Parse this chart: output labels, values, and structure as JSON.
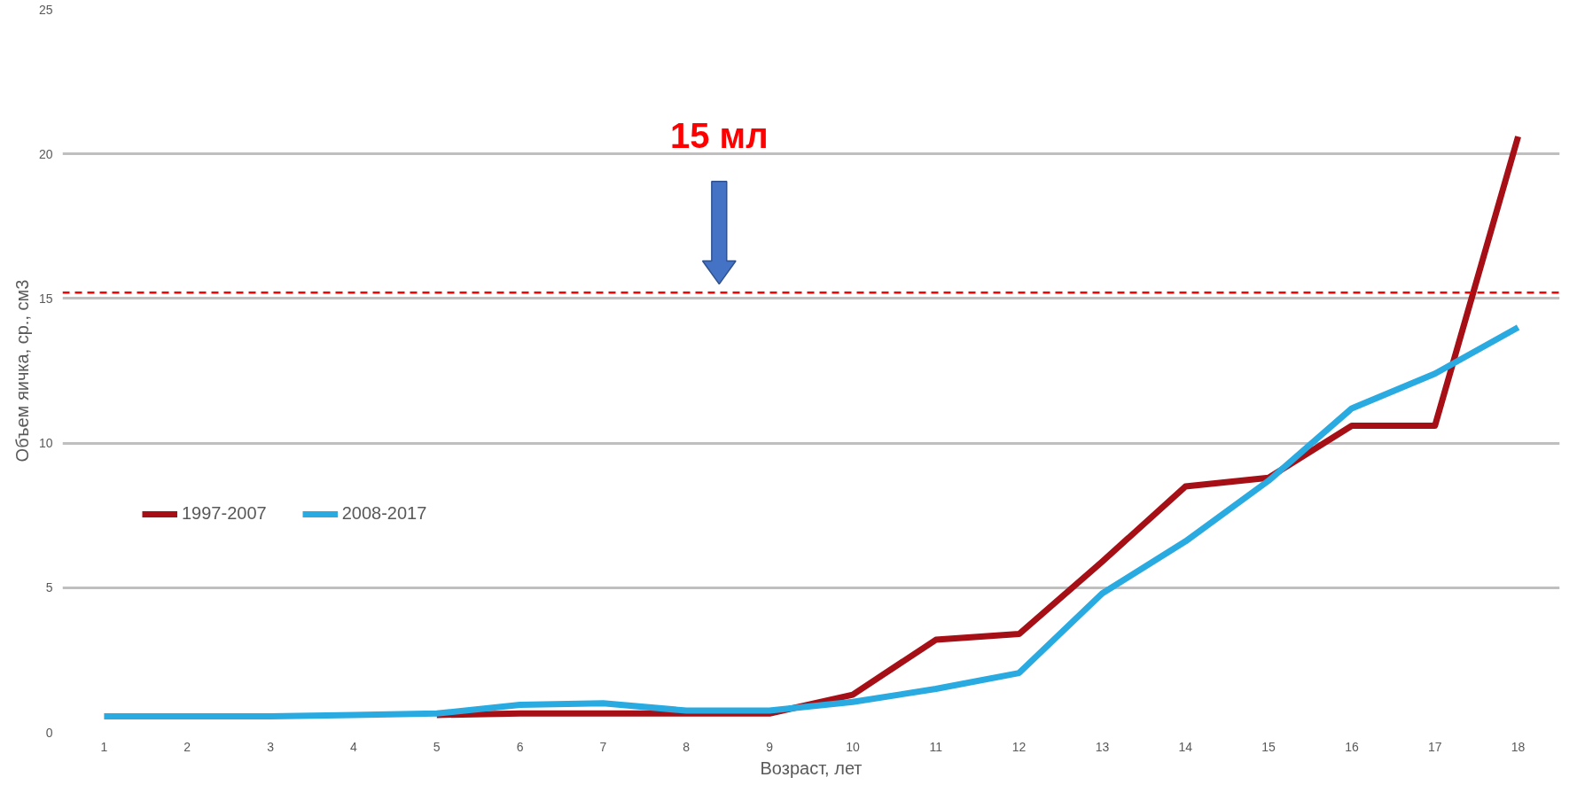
{
  "chart_data": {
    "type": "line",
    "xlabel": "Возраст, лет",
    "ylabel": "Объем яичка, ср., см3",
    "categories": [
      "1",
      "2",
      "3",
      "4",
      "5",
      "6",
      "7",
      "8",
      "9",
      "10",
      "11",
      "12",
      "13",
      "14",
      "15",
      "16",
      "17",
      "18"
    ],
    "series": [
      {
        "name": "1997-2007",
        "color": "#a50f15",
        "values": [
          null,
          null,
          null,
          null,
          0.6,
          0.65,
          0.65,
          0.65,
          0.65,
          1.3,
          3.2,
          3.4,
          5.9,
          8.5,
          8.8,
          10.6,
          10.6,
          20.6
        ]
      },
      {
        "name": "2008-2017",
        "color": "#29aae1",
        "values": [
          0.55,
          0.55,
          0.55,
          0.6,
          0.65,
          0.95,
          1.0,
          0.75,
          0.75,
          1.05,
          1.5,
          2.05,
          4.8,
          6.6,
          8.7,
          11.2,
          12.4,
          14.0
        ]
      }
    ],
    "ylim": [
      0,
      25
    ],
    "yticks": [
      0,
      5,
      10,
      15,
      20,
      25
    ],
    "grid": "y",
    "legend": "left",
    "marker": "none",
    "line_style": "solid",
    "ref_lines": [
      {
        "axis": "y",
        "value": 15.2,
        "label": "15 мл",
        "color": "#ff0000",
        "line_style": "dashed"
      }
    ]
  }
}
